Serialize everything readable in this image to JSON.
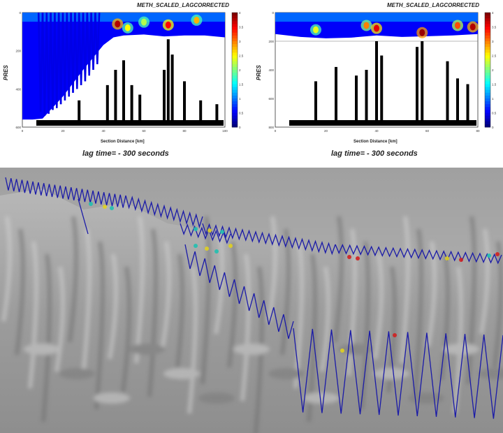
{
  "chart_data": [
    {
      "type": "heatmap",
      "title": "METH_SCALED_LAGCORRECTED",
      "ylabel": "PRES",
      "xlabel": "Section Distance [km]",
      "caption": "lag time= - 300 seconds",
      "xlim": [
        0,
        100
      ],
      "ylim": [
        600,
        0
      ],
      "x_ticks": [
        "0",
        "20",
        "40",
        "60",
        "80",
        "100"
      ],
      "y_ticks": [
        "0",
        "200",
        "400",
        "600"
      ],
      "colorbar_ticks": [
        "0",
        "0.5",
        "1",
        "1.5",
        "2",
        "2.5",
        "3",
        "3.5",
        "4"
      ],
      "glider_top_depth": 30,
      "tow_yo_x": [
        8,
        10,
        12,
        14,
        16,
        18,
        20,
        22,
        24,
        26,
        28,
        30,
        32,
        34,
        36
      ],
      "tow_yo_max_depth": [
        520,
        540,
        530,
        510,
        500,
        480,
        460,
        440,
        420,
        400,
        380,
        360,
        330,
        300,
        270
      ],
      "coverage_floor_x": [
        0,
        5,
        10,
        20,
        30,
        40,
        45,
        50,
        60,
        70,
        80,
        90,
        100
      ],
      "coverage_floor_depth": [
        560,
        560,
        555,
        440,
        300,
        170,
        130,
        120,
        115,
        125,
        120,
        120,
        130
      ],
      "hotspots": [
        {
          "x": 47,
          "depth": 60,
          "value": 3.8
        },
        {
          "x": 52,
          "depth": 80,
          "value": 2.5
        },
        {
          "x": 60,
          "depth": 50,
          "value": 2.2
        },
        {
          "x": 72,
          "depth": 65,
          "value": 3.5
        },
        {
          "x": 86,
          "depth": 40,
          "value": 2.8
        }
      ],
      "scatter_spikes": [
        {
          "x": 28,
          "top": 460,
          "bottom": 580
        },
        {
          "x": 42,
          "top": 380,
          "bottom": 580
        },
        {
          "x": 46,
          "top": 300,
          "bottom": 580
        },
        {
          "x": 50,
          "top": 250,
          "bottom": 580
        },
        {
          "x": 54,
          "top": 380,
          "bottom": 580
        },
        {
          "x": 58,
          "top": 430,
          "bottom": 580
        },
        {
          "x": 70,
          "top": 300,
          "bottom": 580
        },
        {
          "x": 72,
          "top": 140,
          "bottom": 580
        },
        {
          "x": 74,
          "top": 220,
          "bottom": 580
        },
        {
          "x": 80,
          "top": 360,
          "bottom": 580
        },
        {
          "x": 88,
          "top": 460,
          "bottom": 580
        },
        {
          "x": 96,
          "top": 480,
          "bottom": 580
        }
      ]
    },
    {
      "type": "heatmap",
      "title": "METH_SCALED_LAGCORRECTED",
      "ylabel": "PRES",
      "xlabel": "Section Distance [km]",
      "caption": "lag time= - 300 seconds",
      "xlim": [
        0,
        80
      ],
      "ylim": [
        800,
        0
      ],
      "x_ticks": [
        "0",
        "20",
        "40",
        "60",
        "80"
      ],
      "y_ticks": [
        "0",
        "200",
        "400",
        "600",
        "800"
      ],
      "colorbar_ticks": [
        "0",
        "0.5",
        "1",
        "1.5",
        "2",
        "2.5",
        "3",
        "3.5",
        "4"
      ],
      "reference_depth": 200,
      "coverage_floor_x": [
        0,
        10,
        20,
        30,
        40,
        50,
        60,
        70,
        80
      ],
      "coverage_floor_depth": [
        150,
        170,
        180,
        175,
        160,
        170,
        165,
        160,
        150
      ],
      "hotspots": [
        {
          "x": 16,
          "depth": 120,
          "value": 2.4
        },
        {
          "x": 36,
          "depth": 90,
          "value": 3.0
        },
        {
          "x": 40,
          "depth": 110,
          "value": 3.6
        },
        {
          "x": 58,
          "depth": 140,
          "value": 3.9
        },
        {
          "x": 72,
          "depth": 90,
          "value": 3.2
        },
        {
          "x": 78,
          "depth": 100,
          "value": 3.8
        }
      ],
      "scatter_spikes": [
        {
          "x": 16,
          "top": 480,
          "bottom": 780
        },
        {
          "x": 24,
          "top": 380,
          "bottom": 780
        },
        {
          "x": 32,
          "top": 440,
          "bottom": 780
        },
        {
          "x": 36,
          "top": 400,
          "bottom": 780
        },
        {
          "x": 40,
          "top": 200,
          "bottom": 780
        },
        {
          "x": 42,
          "top": 300,
          "bottom": 780
        },
        {
          "x": 56,
          "top": 240,
          "bottom": 780
        },
        {
          "x": 58,
          "top": 200,
          "bottom": 780
        },
        {
          "x": 68,
          "top": 340,
          "bottom": 780
        },
        {
          "x": 72,
          "top": 460,
          "bottom": 780
        },
        {
          "x": 76,
          "top": 500,
          "bottom": 780
        }
      ]
    }
  ],
  "scene": {
    "colors": {
      "terrain": "#a3a3a3",
      "track": "#1a1aa8",
      "hot": "#d02020",
      "warm": "#e0d020",
      "mid": "#20c0b0"
    }
  }
}
